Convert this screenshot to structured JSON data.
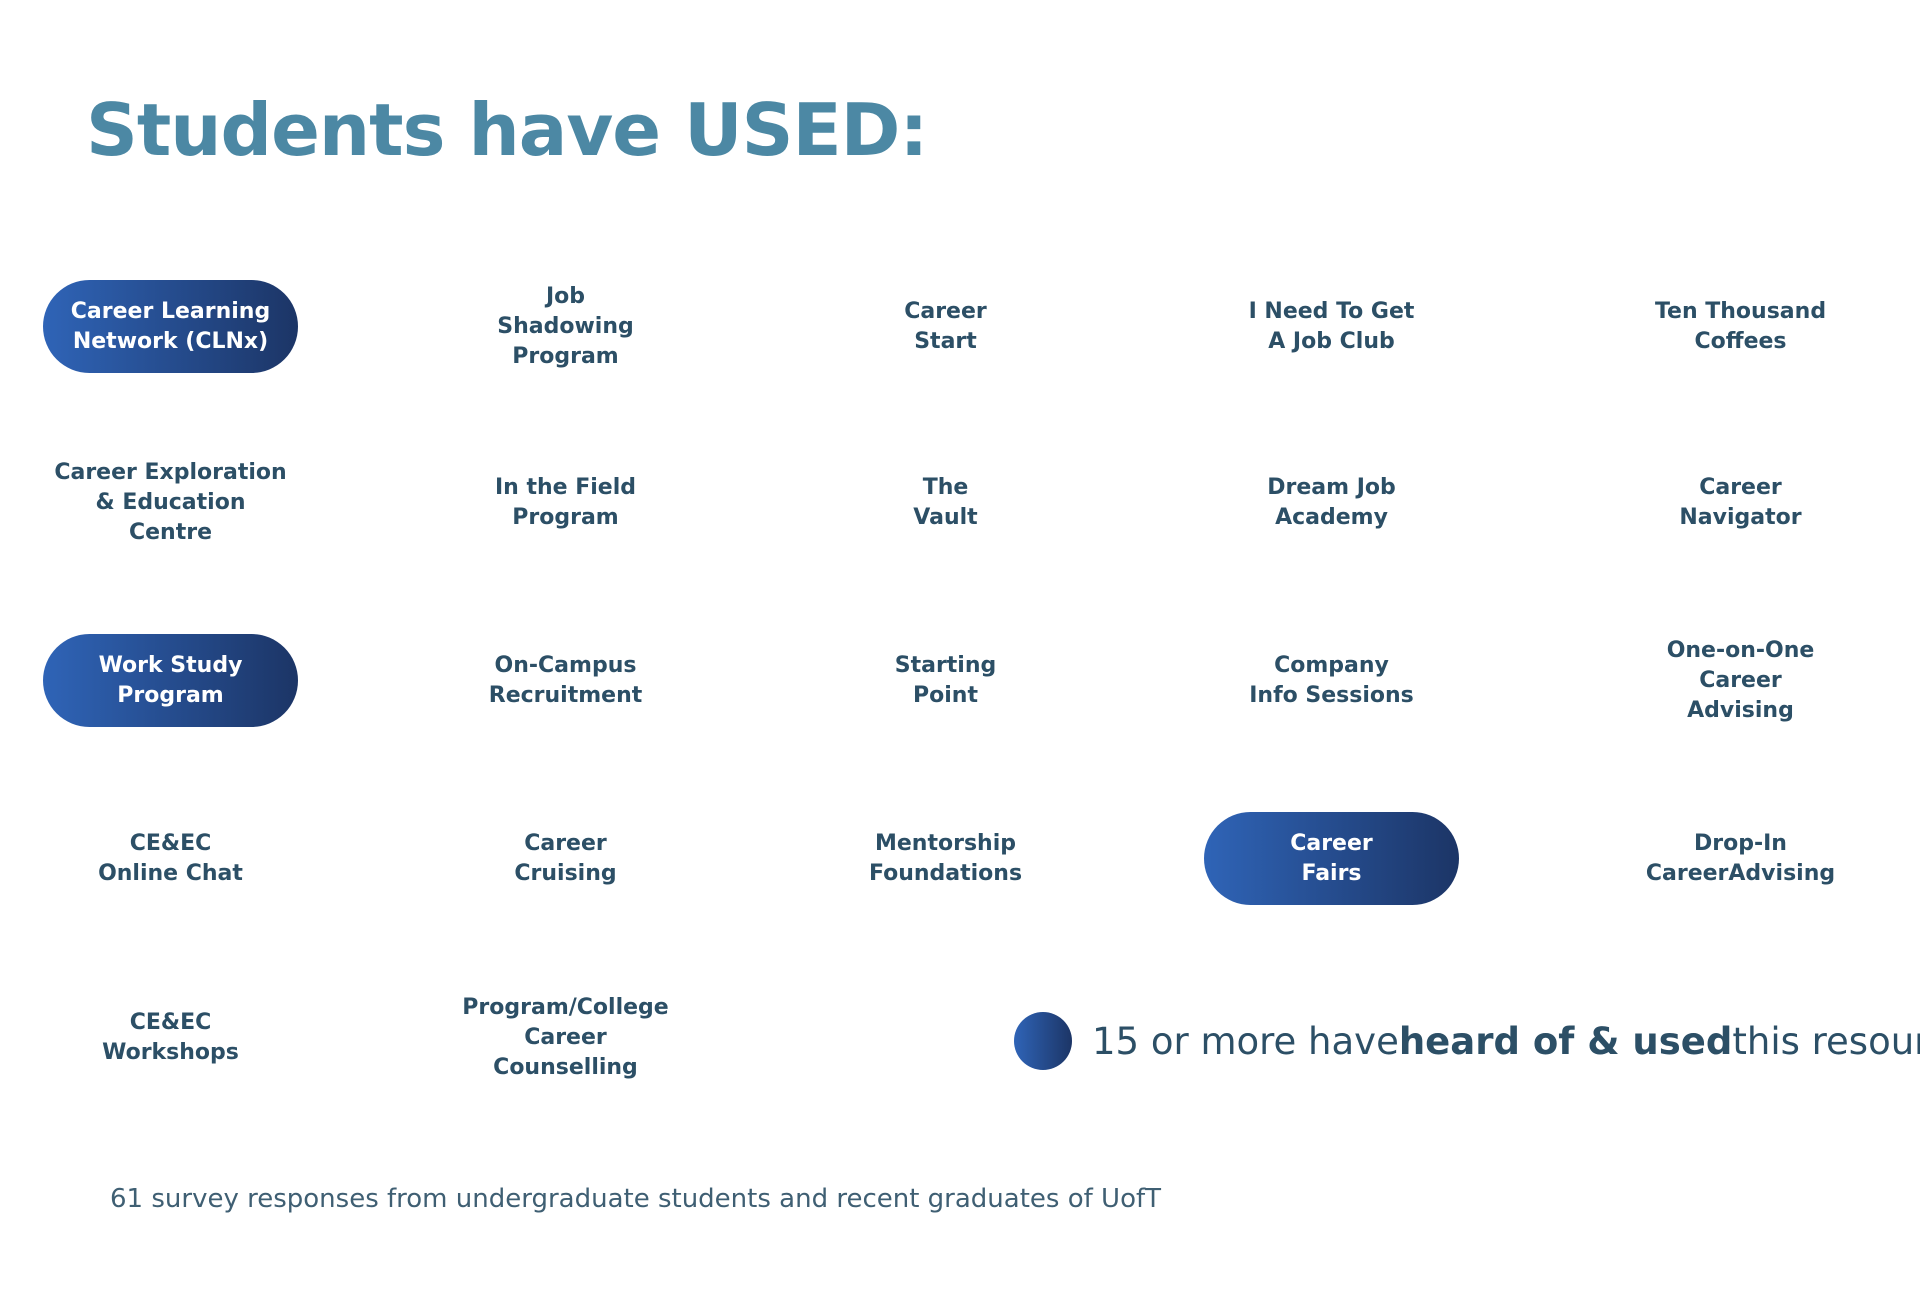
{
  "title": "Students have USED:",
  "items": [
    {
      "lines": [
        "Career Learning",
        "Network (CLNx)"
      ],
      "highlighted": true
    },
    {
      "lines": [
        "Job",
        "Shadowing",
        "Program"
      ],
      "highlighted": false
    },
    {
      "lines": [
        "Career",
        "Start"
      ],
      "highlighted": false
    },
    {
      "lines": [
        "I Need To Get",
        "A Job Club"
      ],
      "highlighted": false
    },
    {
      "lines": [
        "Ten Thousand",
        "Coffees"
      ],
      "highlighted": false
    },
    {
      "lines": [
        "Career Exploration",
        "& Education",
        "Centre"
      ],
      "highlighted": false
    },
    {
      "lines": [
        "In the Field",
        "Program"
      ],
      "highlighted": false
    },
    {
      "lines": [
        "The",
        "Vault"
      ],
      "highlighted": false
    },
    {
      "lines": [
        "Dream Job",
        "Academy"
      ],
      "highlighted": false
    },
    {
      "lines": [
        "Career",
        "Navigator"
      ],
      "highlighted": false
    },
    {
      "lines": [
        "Work Study",
        "Program"
      ],
      "highlighted": true
    },
    {
      "lines": [
        "On-Campus",
        "Recruitment"
      ],
      "highlighted": false
    },
    {
      "lines": [
        "Starting",
        "Point"
      ],
      "highlighted": false
    },
    {
      "lines": [
        "Company",
        "Info Sessions"
      ],
      "highlighted": false
    },
    {
      "lines": [
        "One-on-One",
        "Career",
        "Advising"
      ],
      "highlighted": false
    },
    {
      "lines": [
        "CE&EC",
        "Online Chat"
      ],
      "highlighted": false
    },
    {
      "lines": [
        "Career",
        "Cruising"
      ],
      "highlighted": false
    },
    {
      "lines": [
        "Mentorship",
        "Foundations"
      ],
      "highlighted": false
    },
    {
      "lines": [
        "Career",
        "Fairs"
      ],
      "highlighted": true
    },
    {
      "lines": [
        "Drop-In",
        "CareerAdvising"
      ],
      "highlighted": false
    },
    {
      "lines": [
        "CE&EC",
        "Workshops"
      ],
      "highlighted": false
    },
    {
      "lines": [
        "Program/College",
        "Career",
        "Counselling"
      ],
      "highlighted": false
    }
  ],
  "legend": {
    "before": "15 or more have",
    "bold": "heard of & used",
    "after": "this resource"
  },
  "footnote": "61 survey responses from undergraduate students and recent graduates of UofT"
}
